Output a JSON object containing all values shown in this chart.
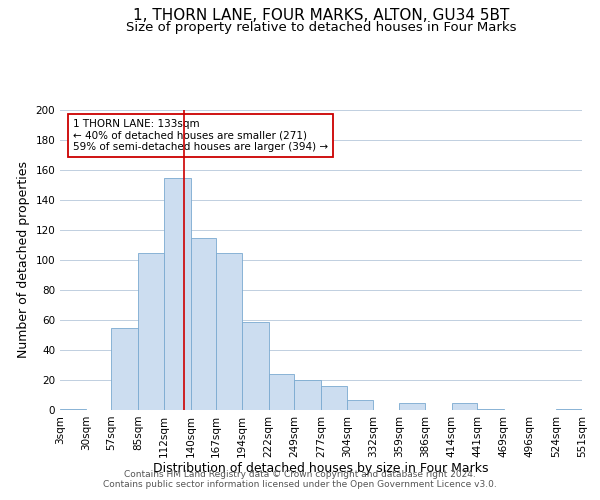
{
  "title": "1, THORN LANE, FOUR MARKS, ALTON, GU34 5BT",
  "subtitle": "Size of property relative to detached houses in Four Marks",
  "xlabel": "Distribution of detached houses by size in Four Marks",
  "ylabel": "Number of detached properties",
  "bin_edges": [
    3,
    30,
    57,
    85,
    112,
    140,
    167,
    194,
    222,
    249,
    277,
    304,
    332,
    359,
    386,
    414,
    441,
    469,
    496,
    524,
    551
  ],
  "bin_labels": [
    "3sqm",
    "30sqm",
    "57sqm",
    "85sqm",
    "112sqm",
    "140sqm",
    "167sqm",
    "194sqm",
    "222sqm",
    "249sqm",
    "277sqm",
    "304sqm",
    "332sqm",
    "359sqm",
    "386sqm",
    "414sqm",
    "441sqm",
    "469sqm",
    "496sqm",
    "524sqm",
    "551sqm"
  ],
  "counts": [
    1,
    0,
    55,
    105,
    155,
    115,
    105,
    59,
    24,
    20,
    16,
    7,
    0,
    5,
    0,
    5,
    1,
    0,
    0,
    1
  ],
  "bar_color": "#ccddf0",
  "bar_edge_color": "#7aaad0",
  "red_line_x": 133,
  "annotation_title": "1 THORN LANE: 133sqm",
  "annotation_line1": "← 40% of detached houses are smaller (271)",
  "annotation_line2": "59% of semi-detached houses are larger (394) →",
  "annotation_box_color": "#ffffff",
  "annotation_box_edge": "#cc0000",
  "red_line_color": "#cc0000",
  "ylim": [
    0,
    200
  ],
  "yticks": [
    0,
    20,
    40,
    60,
    80,
    100,
    120,
    140,
    160,
    180,
    200
  ],
  "footer_line1": "Contains HM Land Registry data © Crown copyright and database right 2024.",
  "footer_line2": "Contains public sector information licensed under the Open Government Licence v3.0.",
  "background_color": "#ffffff",
  "grid_color": "#c0cfe0",
  "title_fontsize": 11,
  "subtitle_fontsize": 9.5,
  "axis_label_fontsize": 9,
  "tick_fontsize": 7.5,
  "footer_fontsize": 6.5
}
